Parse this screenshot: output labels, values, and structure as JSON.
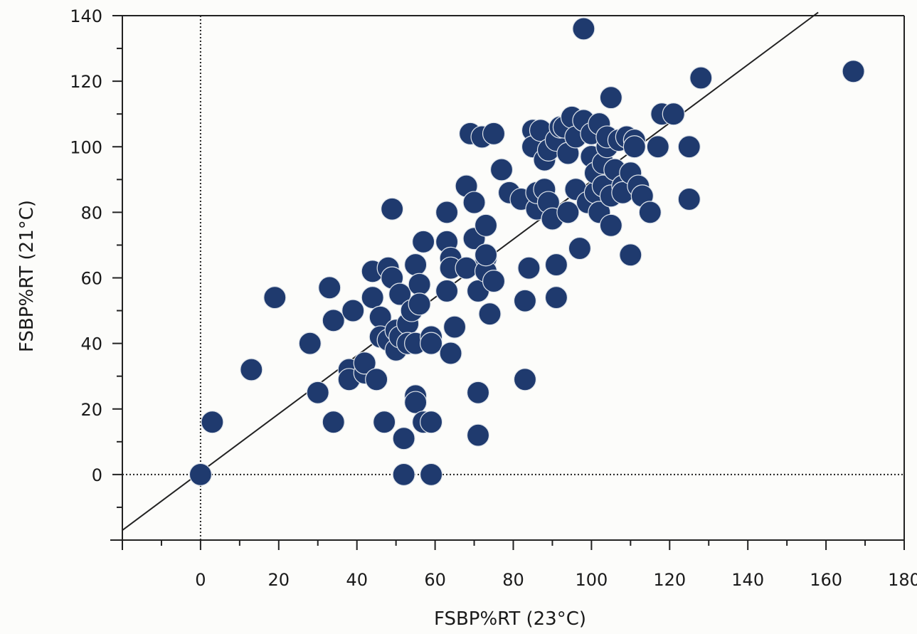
{
  "chart_data": {
    "type": "scatter",
    "xlabel": "FSBP%RT (23°C)",
    "ylabel": "FSBP%RT (21°C)",
    "xlim": [
      -20,
      180
    ],
    "ylim": [
      -20,
      140
    ],
    "xticks": [
      0,
      20,
      40,
      60,
      80,
      100,
      120,
      140,
      160,
      180
    ],
    "yticks": [
      0,
      20,
      40,
      60,
      80,
      100,
      120,
      140
    ],
    "grid": false,
    "reference_lines": [
      {
        "kind": "identity",
        "style": "solid",
        "from": [
          -20,
          -17
        ],
        "to": [
          158,
          141
        ]
      },
      {
        "kind": "vertical",
        "style": "dotted",
        "x": 0
      },
      {
        "kind": "horizontal",
        "style": "dotted",
        "y": 0
      }
    ],
    "marker_color": "#1f3a6e",
    "points": [
      [
        0,
        0
      ],
      [
        3,
        16
      ],
      [
        13,
        32
      ],
      [
        19,
        54
      ],
      [
        28,
        40
      ],
      [
        30,
        25
      ],
      [
        33,
        57
      ],
      [
        34,
        16
      ],
      [
        34,
        47
      ],
      [
        38,
        32
      ],
      [
        38,
        29
      ],
      [
        39,
        50
      ],
      [
        42,
        31
      ],
      [
        42,
        34
      ],
      [
        44,
        62
      ],
      [
        44,
        54
      ],
      [
        45,
        29
      ],
      [
        46,
        48
      ],
      [
        46,
        42
      ],
      [
        47,
        16
      ],
      [
        48,
        63
      ],
      [
        48,
        41
      ],
      [
        49,
        60
      ],
      [
        49,
        81
      ],
      [
        50,
        38
      ],
      [
        50,
        44
      ],
      [
        51,
        55
      ],
      [
        51,
        42
      ],
      [
        52,
        11
      ],
      [
        52,
        0
      ],
      [
        53,
        46
      ],
      [
        53,
        40
      ],
      [
        54,
        50
      ],
      [
        55,
        24
      ],
      [
        55,
        22
      ],
      [
        55,
        64
      ],
      [
        55,
        40
      ],
      [
        56,
        58
      ],
      [
        56,
        52
      ],
      [
        57,
        16
      ],
      [
        57,
        71
      ],
      [
        59,
        42
      ],
      [
        59,
        0
      ],
      [
        59,
        16
      ],
      [
        59,
        40
      ],
      [
        63,
        80
      ],
      [
        63,
        71
      ],
      [
        63,
        56
      ],
      [
        64,
        66
      ],
      [
        64,
        63
      ],
      [
        64,
        37
      ],
      [
        65,
        45
      ],
      [
        68,
        63
      ],
      [
        68,
        88
      ],
      [
        69,
        104
      ],
      [
        70,
        72
      ],
      [
        70,
        83
      ],
      [
        71,
        25
      ],
      [
        71,
        12
      ],
      [
        71,
        56
      ],
      [
        72,
        103
      ],
      [
        73,
        66
      ],
      [
        73,
        76
      ],
      [
        73,
        62
      ],
      [
        73,
        67
      ],
      [
        74,
        49
      ],
      [
        75,
        104
      ],
      [
        75,
        59
      ],
      [
        77,
        93
      ],
      [
        79,
        86
      ],
      [
        82,
        84
      ],
      [
        83,
        53
      ],
      [
        83,
        29
      ],
      [
        84,
        63
      ],
      [
        85,
        105
      ],
      [
        85,
        100
      ],
      [
        86,
        81
      ],
      [
        86,
        86
      ],
      [
        87,
        105
      ],
      [
        88,
        96
      ],
      [
        88,
        87
      ],
      [
        89,
        83
      ],
      [
        89,
        99
      ],
      [
        90,
        78
      ],
      [
        91,
        54
      ],
      [
        91,
        102
      ],
      [
        91,
        64
      ],
      [
        92,
        106
      ],
      [
        93,
        106
      ],
      [
        94,
        80
      ],
      [
        94,
        98
      ],
      [
        95,
        109
      ],
      [
        96,
        103
      ],
      [
        96,
        87
      ],
      [
        97,
        69
      ],
      [
        98,
        108
      ],
      [
        98,
        136
      ],
      [
        99,
        83
      ],
      [
        100,
        104
      ],
      [
        100,
        97
      ],
      [
        101,
        86
      ],
      [
        101,
        92
      ],
      [
        102,
        107
      ],
      [
        102,
        80
      ],
      [
        103,
        95
      ],
      [
        103,
        88
      ],
      [
        104,
        100
      ],
      [
        104,
        103
      ],
      [
        105,
        76
      ],
      [
        105,
        85
      ],
      [
        105,
        115
      ],
      [
        106,
        93
      ],
      [
        107,
        102
      ],
      [
        108,
        88
      ],
      [
        108,
        86
      ],
      [
        109,
        103
      ],
      [
        110,
        92
      ],
      [
        110,
        67
      ],
      [
        111,
        102
      ],
      [
        111,
        100
      ],
      [
        112,
        88
      ],
      [
        113,
        85
      ],
      [
        115,
        80
      ],
      [
        117,
        100
      ],
      [
        118,
        110
      ],
      [
        121,
        110
      ],
      [
        125,
        100
      ],
      [
        125,
        84
      ],
      [
        128,
        121
      ],
      [
        167,
        123
      ]
    ]
  }
}
